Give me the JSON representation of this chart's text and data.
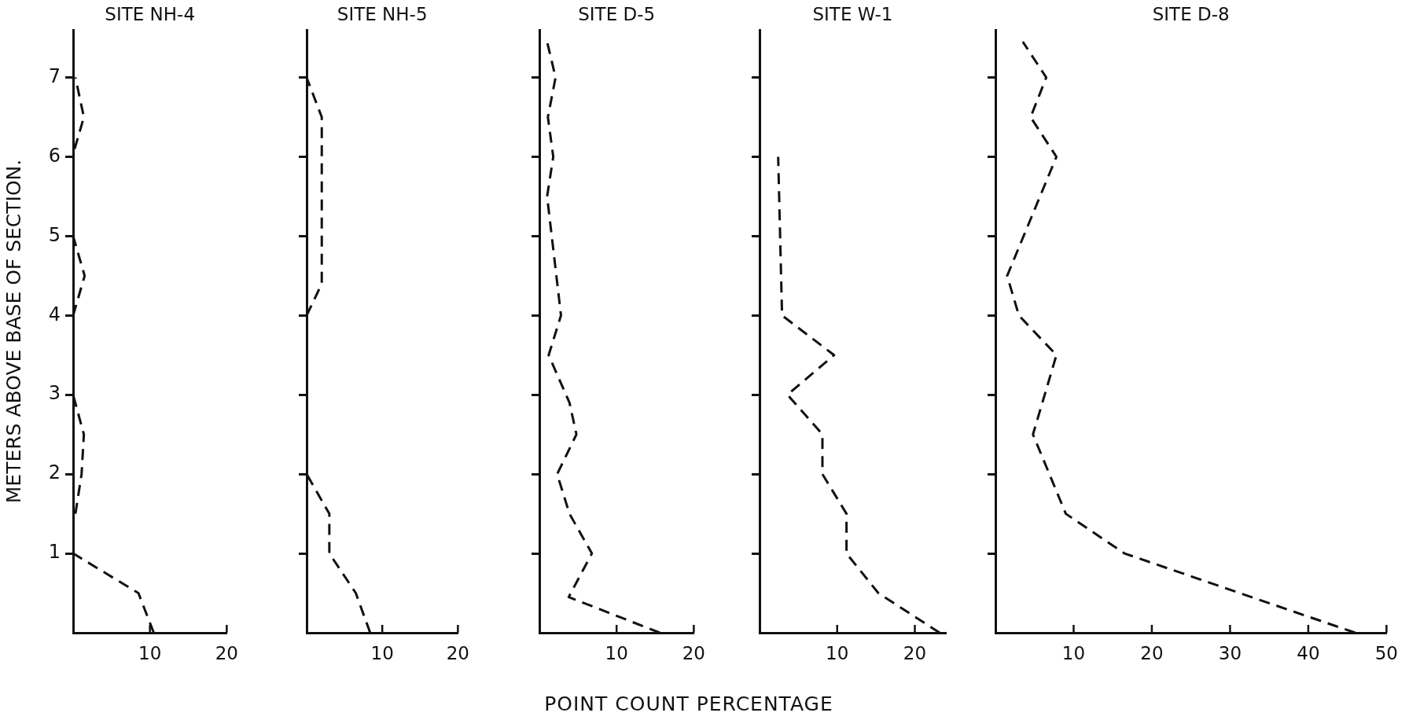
{
  "chart_data": [
    {
      "type": "line",
      "title": "SITE NH-4",
      "ylabel": "METERS ABOVE BASE OF SECTION.",
      "series": [
        {
          "color": "#111111",
          "x": [
            10.5,
            8.5,
            0,
            null,
            0.3,
            1.1,
            1.4,
            0,
            null,
            0,
            1.5,
            0,
            null,
            0.2,
            1.4,
            0.3
          ],
          "values": [
            0,
            0.5,
            1,
            null,
            1.5,
            2,
            2.5,
            3,
            null,
            4,
            4.5,
            5,
            null,
            6.1,
            6.5,
            7
          ]
        }
      ],
      "xlim": [
        0,
        20
      ],
      "xticks": [
        10,
        20
      ],
      "ylim": [
        0,
        7.6
      ],
      "yticks": [
        1,
        2,
        3,
        4,
        5,
        6,
        7
      ],
      "line_style": "dashed"
    },
    {
      "type": "line",
      "title": "SITE NH-5",
      "series": [
        {
          "color": "#111111",
          "x": [
            8.4,
            6.5,
            3,
            3,
            0,
            null,
            0,
            2,
            2,
            0
          ],
          "values": [
            0,
            0.5,
            1,
            1.5,
            2,
            null,
            4,
            4.4,
            6.5,
            7
          ]
        }
      ],
      "xlim": [
        0,
        20
      ],
      "xticks": [
        10,
        20
      ],
      "ylim": [
        0,
        7.6
      ],
      "yticks": [
        1,
        2,
        3,
        4,
        5,
        6,
        7
      ],
      "tick_labels": "x",
      "line_style": "dashed"
    },
    {
      "type": "line",
      "title": "SITE D-5",
      "xlabel": "POINT COUNT PERCENTAGE",
      "series": [
        {
          "color": "#111111",
          "x": [
            15.6,
            3.8,
            6.8,
            3.9,
            2.3,
            4.8,
            3.9,
            1.2,
            2.8,
            1,
            1.8,
            1.1,
            2.1,
            1
          ],
          "values": [
            0,
            0.45,
            1,
            1.5,
            2,
            2.5,
            2.9,
            3.5,
            4,
            5.5,
            6,
            6.5,
            7,
            7.45
          ]
        }
      ],
      "xlim": [
        0,
        20
      ],
      "xticks": [
        10,
        20
      ],
      "ylim": [
        0,
        7.6
      ],
      "yticks": [
        1,
        2,
        3,
        4,
        5,
        6,
        7
      ],
      "tick_labels": "x",
      "line_style": "dashed"
    },
    {
      "type": "line",
      "title": "SITE W-1",
      "series": [
        {
          "color": "#111111",
          "x": [
            23.2,
            15.3,
            11.2,
            11.2,
            8.1,
            8.1,
            3.6,
            9.6,
            2.9,
            2.4
          ],
          "values": [
            0,
            0.5,
            1,
            1.5,
            2,
            2.5,
            3,
            3.5,
            4,
            6
          ]
        }
      ],
      "xlim": [
        0,
        24
      ],
      "xticks": [
        10,
        20
      ],
      "ylim": [
        0,
        7.6
      ],
      "yticks": [
        1,
        2,
        3,
        4,
        5,
        6,
        7
      ],
      "tick_labels": "x",
      "line_style": "dashed"
    },
    {
      "type": "line",
      "title": "SITE D-8",
      "series": [
        {
          "color": "#111111",
          "x": [
            46,
            16.5,
            9,
            4.8,
            7.8,
            3,
            1.5,
            7.8,
            4.5,
            6.5,
            3.5
          ],
          "values": [
            0,
            1,
            1.5,
            2.5,
            3.5,
            4,
            4.5,
            6,
            6.5,
            7,
            7.45
          ]
        }
      ],
      "xlim": [
        0,
        50
      ],
      "xticks": [
        10,
        20,
        30,
        40,
        50
      ],
      "ylim": [
        0,
        7.6
      ],
      "yticks": [
        1,
        2,
        3,
        4,
        5,
        6,
        7
      ],
      "tick_labels": "x",
      "line_style": "dashed"
    }
  ]
}
